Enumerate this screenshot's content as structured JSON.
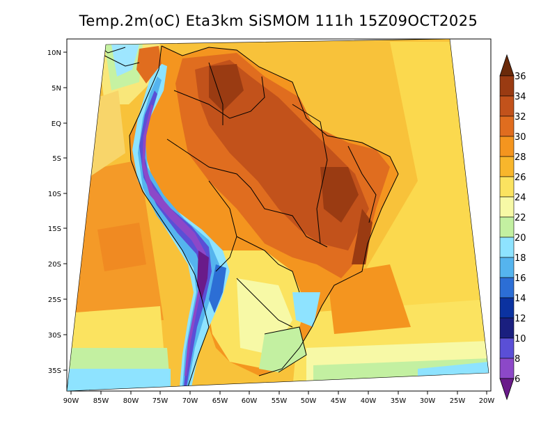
{
  "title": "Temp.2m(oC) Eta3km SiSMOM 111h 15Z09OCT2025",
  "map": {
    "lat_labels": [
      "10N",
      "5N",
      "EQ",
      "5S",
      "10S",
      "15S",
      "20S",
      "25S",
      "30S",
      "35S"
    ],
    "lon_labels": [
      "90W",
      "85W",
      "80W",
      "75W",
      "70W",
      "65W",
      "60W",
      "55W",
      "50W",
      "45W",
      "40W",
      "35W",
      "30W",
      "25W",
      "20W"
    ]
  },
  "colorbar": {
    "labels": [
      "36",
      "34",
      "32",
      "30",
      "28",
      "26",
      "24",
      "22",
      "20",
      "18",
      "16",
      "14",
      "12",
      "10",
      "8",
      "6"
    ],
    "colors": [
      "#6a2a0a",
      "#9a3b12",
      "#c2521b",
      "#e06d1f",
      "#f4951f",
      "#f8b62c",
      "#fbe360",
      "#f7f9a6",
      "#c3f0a1",
      "#8ee3ff",
      "#55b4ee",
      "#2c6ed5",
      "#0b32a0",
      "#1a1f7f",
      "#5a4fd6",
      "#8c48c8",
      "#6a1b8a"
    ]
  }
}
